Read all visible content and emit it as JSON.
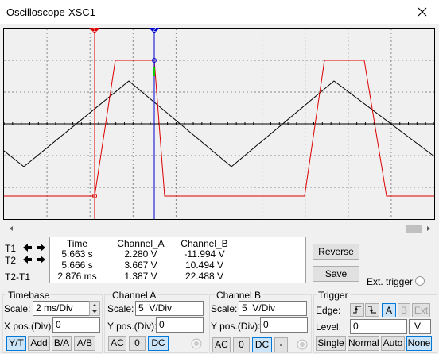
{
  "window": {
    "title": "Oscilloscope-XSC1"
  },
  "cursors": [
    "1",
    "2"
  ],
  "readout": {
    "row_labels": [
      "T1",
      "T2",
      "T2-T1"
    ],
    "columns": [
      "Time",
      "Channel_A",
      "Channel_B"
    ],
    "rows": [
      [
        "5.663 s",
        "2.280 V",
        "-11.994 V"
      ],
      [
        "5.666 s",
        "3.667 V",
        "10.494 V"
      ],
      [
        "2.876 ms",
        "1.387 V",
        "22.488 V"
      ]
    ]
  },
  "buttons": {
    "reverse": "Reverse",
    "save": "Save"
  },
  "ext_trigger": "Ext. trigger",
  "timebase": {
    "title": "Timebase",
    "scale_label": "Scale:",
    "scale": "2 ms/Div",
    "xpos_label": "X pos.(Div):",
    "xpos": "0",
    "modes": [
      "Y/T",
      "Add",
      "B/A",
      "A/B"
    ]
  },
  "channel_a": {
    "title": "Channel A",
    "scale_label": "Scale:",
    "scale": "5  V/Div",
    "ypos_label": "Y pos.(Div):",
    "ypos": "0",
    "coupling": [
      "AC",
      "0",
      "DC"
    ]
  },
  "channel_b": {
    "title": "Channel B",
    "scale_label": "Scale:",
    "scale": "5  V/Div",
    "ypos_label": "Y pos.(Div):",
    "ypos": "0",
    "coupling": [
      "AC",
      "0",
      "DC",
      "-"
    ]
  },
  "trigger": {
    "title": "Trigger",
    "edge_label": "Edge:",
    "sources": [
      "A",
      "B",
      "Ext"
    ],
    "level_label": "Level:",
    "level": "0",
    "level_unit": "V",
    "modes": [
      "Single",
      "Normal",
      "Auto",
      "None"
    ]
  }
}
